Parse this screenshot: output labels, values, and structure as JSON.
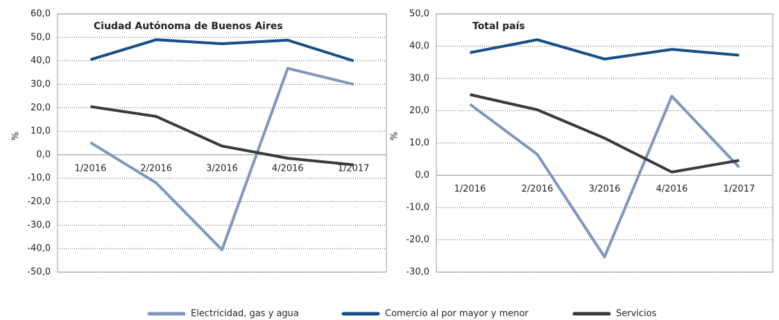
{
  "chart_data": [
    {
      "type": "line",
      "title": "Ciudad Autónoma de Buenos Aires",
      "y_label": "%",
      "categories": [
        "1/2016",
        "2/2016",
        "3/2016",
        "4/2016",
        "1/2017"
      ],
      "series": [
        {
          "name": "Electricidad, gas y agua",
          "color": "#7f96bd",
          "values": [
            5.2,
            -12,
            -40.5,
            36.8,
            30
          ]
        },
        {
          "name": "Comercio al por mayor y menor",
          "color": "#164f86",
          "values": [
            40.5,
            49,
            47.3,
            48.8,
            40
          ]
        },
        {
          "name": "Servicios",
          "color": "#3a3a3a",
          "values": [
            20.5,
            16.3,
            3.7,
            -1.5,
            -4.3
          ]
        }
      ],
      "ylim": [
        -50,
        60
      ],
      "yticks": [
        {
          "value": -50,
          "label": "-50,0"
        },
        {
          "value": -40,
          "label": "-40,0"
        },
        {
          "value": -30,
          "label": "-30,0"
        },
        {
          "value": -20,
          "label": "-20,0"
        },
        {
          "value": -10,
          "label": "-10,0"
        },
        {
          "value": 0,
          "label": "0,0"
        },
        {
          "value": 10,
          "label": "10,0"
        },
        {
          "value": 20,
          "label": "20,0"
        },
        {
          "value": 30,
          "label": "30,0"
        },
        {
          "value": 40,
          "label": "40,0"
        },
        {
          "value": 50,
          "label": "50,0"
        },
        {
          "value": 60,
          "label": "60,0"
        }
      ],
      "grid": true
    },
    {
      "type": "line",
      "title": "Total país",
      "y_label": "%",
      "categories": [
        "1/2016",
        "2/2016",
        "3/2016",
        "4/2016",
        "1/2017"
      ],
      "series": [
        {
          "color": "#7f96bd",
          "values": [
            22,
            6.5,
            -25.3,
            24.5,
            2.5
          ]
        },
        {
          "color": "#164f86",
          "values": [
            38,
            42,
            36,
            39,
            37.2
          ]
        },
        {
          "color": "#3a3a3a",
          "values": [
            25,
            20.3,
            11.5,
            1,
            4.6
          ]
        }
      ],
      "ylim": [
        -30,
        50
      ],
      "yticks": [
        {
          "value": -30,
          "label": "-30,0"
        },
        {
          "value": -20,
          "label": "-20,0"
        },
        {
          "value": -10,
          "label": "-10,0"
        },
        {
          "value": 0,
          "label": "0,0"
        },
        {
          "value": 10,
          "label": "10,0"
        },
        {
          "value": 20,
          "label": "20,0"
        },
        {
          "value": 30,
          "label": "30,0"
        },
        {
          "value": 40,
          "label": "40,0"
        },
        {
          "value": 50,
          "label": "50,0"
        }
      ],
      "grid": true
    }
  ]
}
